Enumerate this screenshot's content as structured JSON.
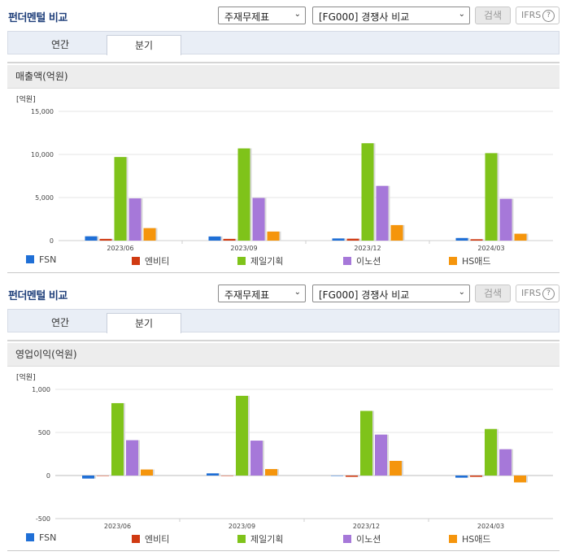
{
  "panels": [
    {
      "title": "펀더멘털 비교",
      "select_theme": "주재무제표",
      "select_compare": "[FG000] 경쟁사 비교",
      "search_label": "검색",
      "ifrs_label": "IFRS",
      "help_glyph": "?",
      "tabs": [
        "연간",
        "분기"
      ],
      "active_tab": "분기",
      "subheading": "매출액(억원)"
    },
    {
      "title": "펀더멘털 비교",
      "select_theme": "주재무제표",
      "select_compare": "[FG000] 경쟁사 비교",
      "search_label": "검색",
      "ifrs_label": "IFRS",
      "help_glyph": "?",
      "tabs": [
        "연간",
        "분기"
      ],
      "active_tab": "분기",
      "subheading": "영업이익(억원)"
    }
  ],
  "colors": {
    "FSN": "#1f6fd6",
    "엔비티": "#d03a12",
    "제일기획": "#7fc31a",
    "이노션": "#a678d9",
    "HS애드": "#f5950c"
  },
  "chart_data": [
    {
      "type": "bar",
      "unit_label": "[억원]",
      "categories": [
        "2023/06",
        "2023/09",
        "2023/12",
        "2024/03"
      ],
      "ylim": [
        0,
        15000
      ],
      "yticks": [
        0,
        5000,
        10000,
        15000
      ],
      "ytick_labels": [
        "0",
        "5,000",
        "10,000",
        "15,000"
      ],
      "legend_position": "bottom",
      "series": [
        {
          "name": "FSN",
          "values": [
            500,
            480,
            250,
            300
          ]
        },
        {
          "name": "엔비티",
          "values": [
            200,
            200,
            220,
            160
          ]
        },
        {
          "name": "제일기획",
          "values": [
            9700,
            10700,
            11300,
            10150
          ]
        },
        {
          "name": "이노션",
          "values": [
            4900,
            4950,
            6350,
            4850
          ]
        },
        {
          "name": "HS애드",
          "values": [
            1450,
            1050,
            1800,
            800
          ]
        }
      ]
    },
    {
      "type": "bar",
      "unit_label": "[억원]",
      "categories": [
        "2023/06",
        "2023/09",
        "2023/12",
        "2024/03"
      ],
      "ylim": [
        -500,
        1000
      ],
      "yticks": [
        -500,
        0,
        500,
        1000
      ],
      "ytick_labels": [
        "-500",
        "0",
        "500",
        "1,000"
      ],
      "legend_position": "bottom",
      "series": [
        {
          "name": "FSN",
          "values": [
            -35,
            25,
            0,
            -25
          ]
        },
        {
          "name": "엔비티",
          "values": [
            0,
            0,
            -15,
            -15
          ]
        },
        {
          "name": "제일기획",
          "values": [
            840,
            925,
            750,
            540
          ]
        },
        {
          "name": "이노션",
          "values": [
            410,
            405,
            475,
            305
          ]
        },
        {
          "name": "HS애드",
          "values": [
            70,
            75,
            170,
            -80
          ]
        }
      ]
    }
  ]
}
